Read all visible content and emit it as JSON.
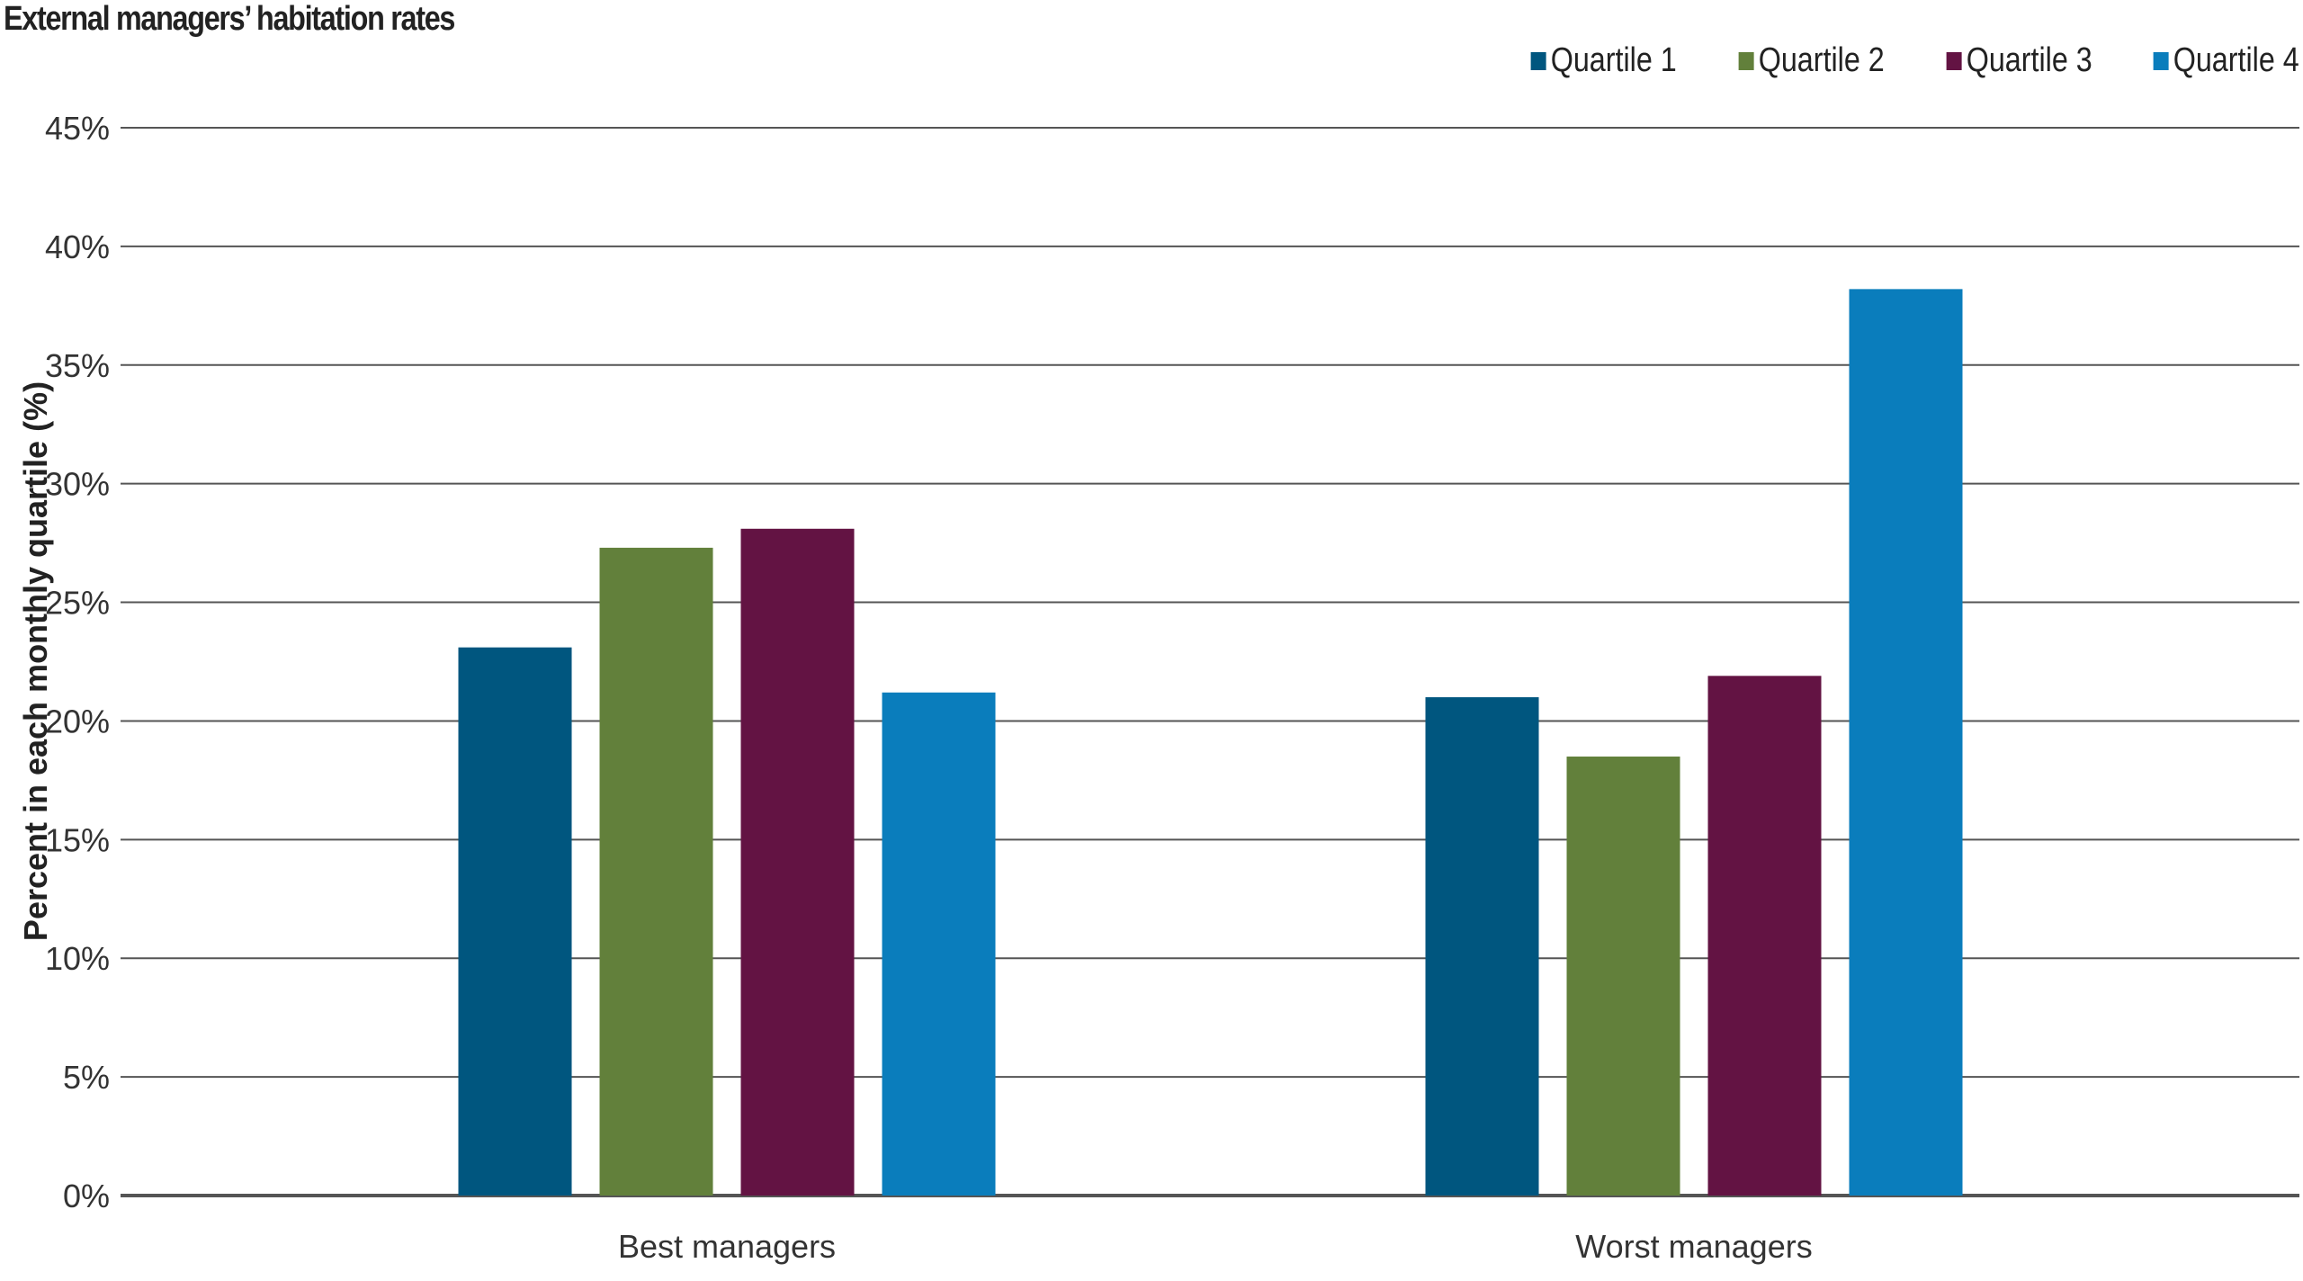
{
  "chart_data": {
    "type": "bar",
    "title": "External managers’ habitation rates",
    "ylabel": "Percent in each monthly quartile (%)",
    "xlabel": "",
    "categories": [
      "Best managers",
      "Worst managers"
    ],
    "series": [
      {
        "name": "Quartile 1",
        "color": "#00567f",
        "values": [
          23.1,
          21.0
        ]
      },
      {
        "name": "Quartile 2",
        "color": "#62803b",
        "values": [
          27.3,
          18.5
        ]
      },
      {
        "name": "Quartile 3",
        "color": "#631343",
        "values": [
          28.1,
          21.9
        ]
      },
      {
        "name": "Quartile 4",
        "color": "#0a7dbc",
        "values": [
          21.2,
          38.2
        ]
      }
    ],
    "ylim": [
      0,
      45
    ],
    "yticks": [
      0,
      5,
      10,
      15,
      20,
      25,
      30,
      35,
      40,
      45
    ],
    "ytick_labels": [
      "0%",
      "5%",
      "10%",
      "15%",
      "20%",
      "25%",
      "30%",
      "35%",
      "40%",
      "45%"
    ],
    "grid": true,
    "legend_position": "top-right"
  }
}
